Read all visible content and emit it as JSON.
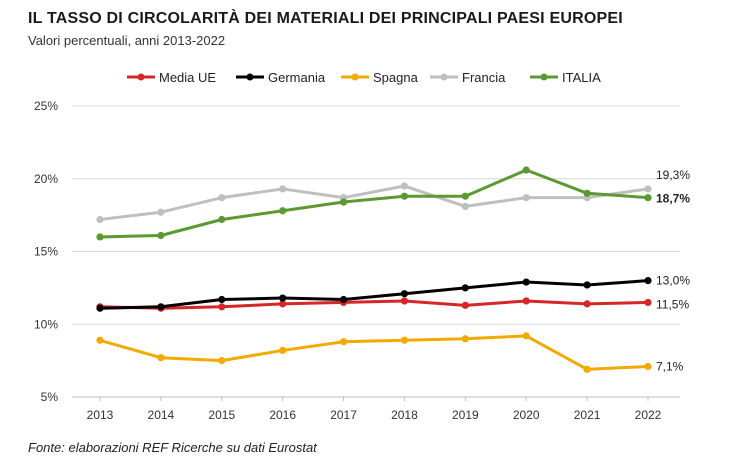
{
  "header": {
    "title": "IL TASSO DI CIRCOLARITÀ DEI MATERIALI DEI PRINCIPALI PAESI EUROPEI",
    "subtitle": "Valori percentuali, anni 2013-2022"
  },
  "footer": {
    "source": "Fonte: elaborazioni REF Ricerche su dati Eurostat"
  },
  "chart_data": {
    "type": "line",
    "title": "IL TASSO DI CIRCOLARITÀ DEI MATERIALI DEI PRINCIPALI PAESI EUROPEI",
    "subtitle": "Valori percentuali, anni 2013-2022",
    "xlabel": "",
    "ylabel": "",
    "categories": [
      "2013",
      "2014",
      "2015",
      "2016",
      "2017",
      "2018",
      "2019",
      "2020",
      "2021",
      "2022"
    ],
    "ylim": [
      5,
      25
    ],
    "yticks": [
      5,
      10,
      15,
      20,
      25
    ],
    "ytick_labels": [
      "5%",
      "10%",
      "15%",
      "20%",
      "25%"
    ],
    "grid": "horizontal",
    "legend_position": "top",
    "series": [
      {
        "name": "Media UE",
        "color": "#d62728",
        "values": [
          11.2,
          11.1,
          11.2,
          11.4,
          11.5,
          11.6,
          11.3,
          11.6,
          11.4,
          11.5
        ],
        "end_label": "11,5%",
        "end_label_bold": false
      },
      {
        "name": "Germania",
        "color": "#000000",
        "values": [
          11.1,
          11.2,
          11.7,
          11.8,
          11.7,
          12.1,
          12.5,
          12.9,
          12.7,
          13.0
        ],
        "end_label": "13,0%",
        "end_label_bold": false
      },
      {
        "name": "Spagna",
        "color": "#f2a900",
        "values": [
          8.9,
          7.7,
          7.5,
          8.2,
          8.8,
          8.9,
          9.0,
          9.2,
          6.9,
          7.1
        ],
        "end_label": "7,1%",
        "end_label_bold": false
      },
      {
        "name": "Francia",
        "color": "#bfbfbf",
        "values": [
          17.2,
          17.7,
          18.7,
          19.3,
          18.7,
          19.5,
          18.1,
          18.7,
          18.7,
          19.3
        ],
        "end_label": "19,3%",
        "end_label_bold": false
      },
      {
        "name": "ITALIA",
        "color": "#5b9a32",
        "values": [
          16.0,
          16.1,
          17.2,
          17.8,
          18.4,
          18.8,
          18.8,
          20.6,
          19.0,
          18.7
        ],
        "end_label": "18,7%",
        "end_label_bold": true
      }
    ]
  }
}
